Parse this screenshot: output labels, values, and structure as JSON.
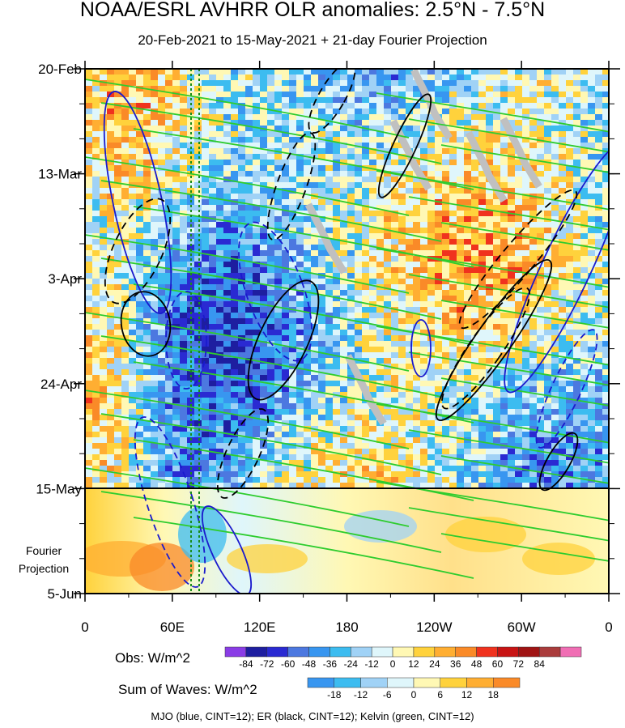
{
  "title": "NOAA/ESRL AVHRR OLR anomalies: 2.5°N - 7.5°N",
  "subtitle": "20-Feb-2021 to 15-May-2021 + 21-day Fourier Projection",
  "y_axis_labels": [
    "20-Feb",
    "13-Mar",
    "3-Apr",
    "24-Apr",
    "15-May",
    "5-Jun"
  ],
  "fourier_label": "Fourier Projection",
  "x_axis_labels": [
    "0",
    "60E",
    "120E",
    "180",
    "120W",
    "60W",
    "0"
  ],
  "obs_colorbar": {
    "title": "Obs: W/m^2",
    "ticks": [
      "-84",
      "-72",
      "-60",
      "-48",
      "-36",
      "-24",
      "-12",
      "0",
      "12",
      "24",
      "36",
      "48",
      "60",
      "72",
      "84"
    ],
    "colors": [
      "#8a3ce6",
      "#1e1ea0",
      "#2a2ad2",
      "#4c78e0",
      "#3896f0",
      "#3cbcf0",
      "#a0d2f6",
      "#dff6fb",
      "#fff8b4",
      "#ffd23c",
      "#ffae32",
      "#fa8a28",
      "#f0321e",
      "#c81414",
      "#a01414",
      "#aa3c3c",
      "#f06eb4"
    ]
  },
  "waves_colorbar": {
    "title": "Sum of Waves: W/m^2",
    "ticks": [
      "-18",
      "-12",
      "-6",
      "0",
      "6",
      "12",
      "18"
    ],
    "colors": [
      "#3896f0",
      "#3cbcf0",
      "#a0d2f6",
      "#dff6fb",
      "#fff8b4",
      "#ffd23c",
      "#ffae32",
      "#fa8a28"
    ]
  },
  "footer": "MJO (blue, CINT=12); ER (black, CINT=12); Kelvin (green, CINT=12)",
  "chart_data": {
    "type": "heatmap",
    "description_x": "longitude",
    "x_ticks": [
      "0",
      "60E",
      "120E",
      "180",
      "120W",
      "60W",
      "0"
    ],
    "y_ticks": [
      "20-Feb",
      "13-Mar",
      "3-Apr",
      "24-Apr",
      "15-May",
      "5-Jun"
    ],
    "y_range": [
      "20-Feb-2021",
      "5-Jun-2021"
    ],
    "projection_start": "15-May-2021",
    "overlays": [
      "MJO (blue)",
      "ER (black)",
      "Kelvin (green)"
    ],
    "contour_interval": 12
  }
}
